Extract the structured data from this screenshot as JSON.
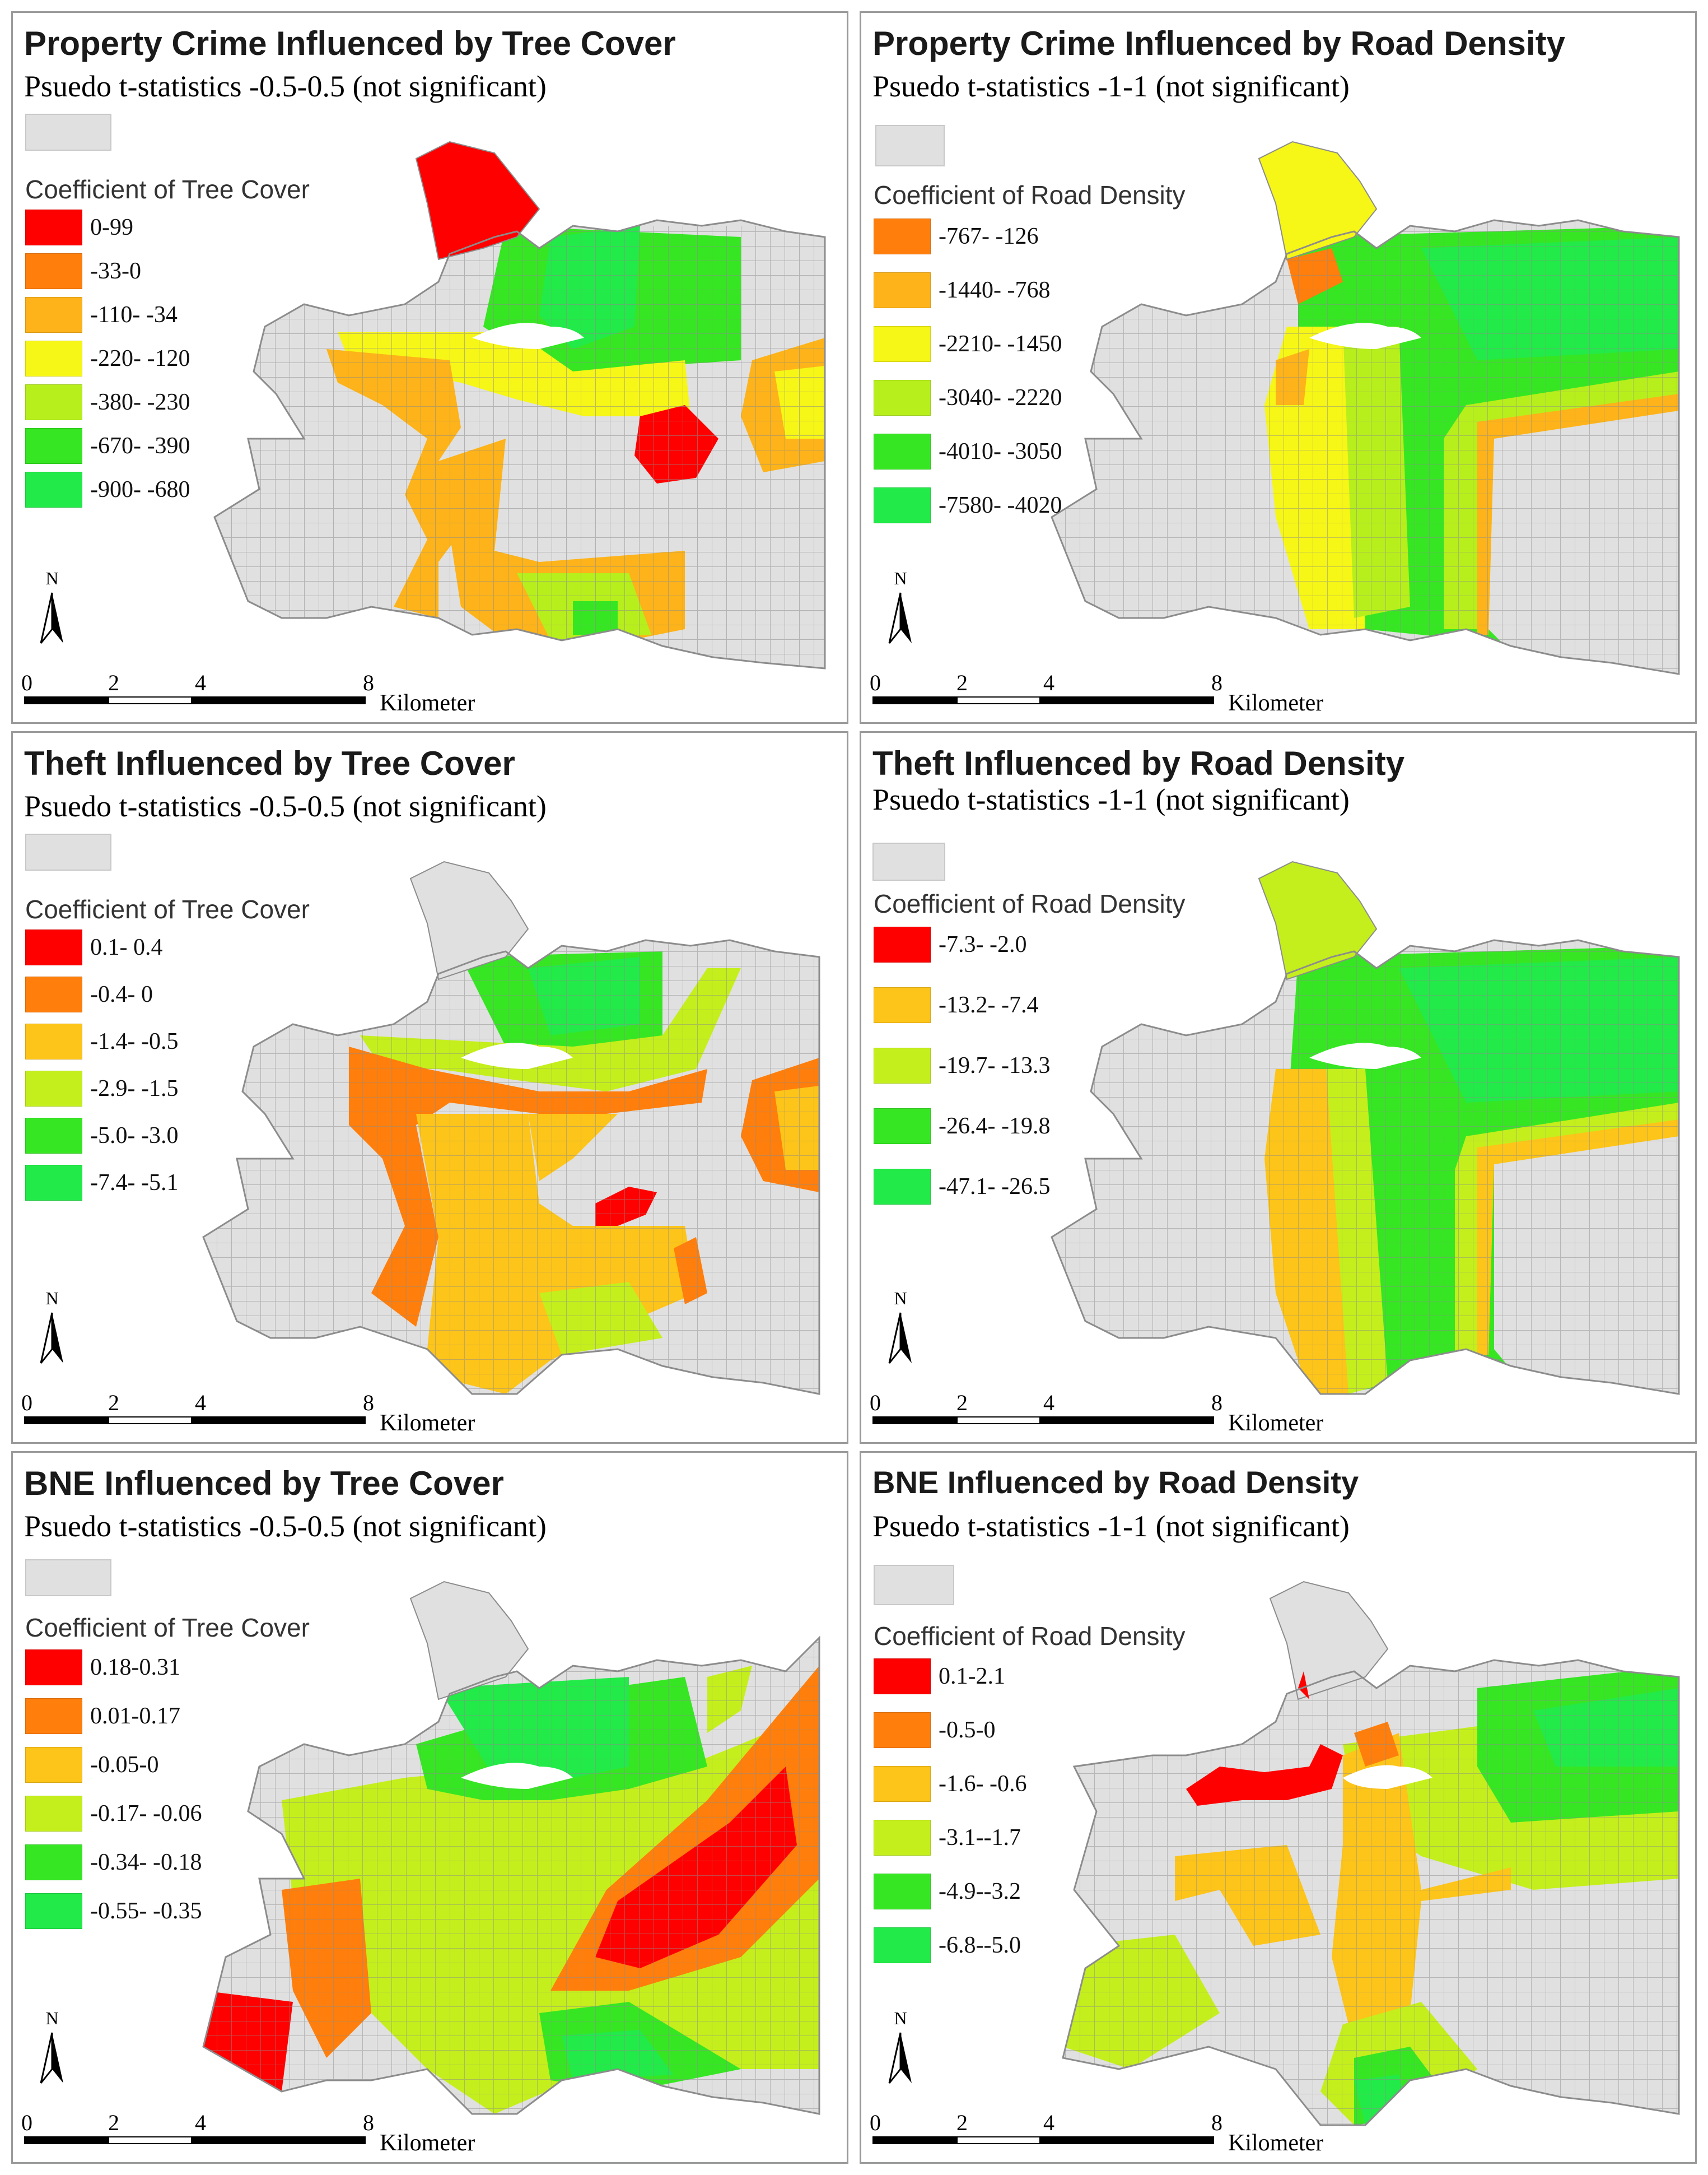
{
  "panels": [
    {
      "title": "Property Crime Influenced by Tree Cover",
      "subtitle": "Psuedo t-statistics -0.5-0.5 (not significant)",
      "legend_title": "Coefficient of Tree Cover",
      "legend": [
        {
          "label": "0-99",
          "color": "#ff0000"
        },
        {
          "label": "-33-0",
          "color": "#ff7e0c"
        },
        {
          "label": "-110- -34",
          "color": "#fdb319"
        },
        {
          "label": "-220- -120",
          "color": "#f6f617"
        },
        {
          "label": "-380- -230",
          "color": "#b7ef1c"
        },
        {
          "label": "-670- -390",
          "color": "#36e623"
        },
        {
          "label": "-900- -680",
          "color": "#22ea48"
        }
      ]
    },
    {
      "title": "Property Crime Influenced by Road Density",
      "subtitle": "Psuedo t-statistics -1-1 (not significant)",
      "legend_title": "Coefficient of Road Density",
      "legend": [
        {
          "label": "-767- -126",
          "color": "#ff7e0c"
        },
        {
          "label": "-1440- -768",
          "color": "#fdb319"
        },
        {
          "label": "-2210- -1450",
          "color": "#f6f617"
        },
        {
          "label": "-3040- -2220",
          "color": "#b7ef1c"
        },
        {
          "label": "-4010- -3050",
          "color": "#36e623"
        },
        {
          "label": "-7580- -4020",
          "color": "#22ea48"
        }
      ]
    },
    {
      "title": "Theft Influenced by Tree Cover",
      "subtitle": "Psuedo t-statistics -0.5-0.5 (not significant)",
      "legend_title": "Coefficient of Tree Cover",
      "legend": [
        {
          "label": "0.1- 0.4",
          "color": "#ff0000"
        },
        {
          "label": "-0.4- 0",
          "color": "#ff7e0c"
        },
        {
          "label": "-1.4- -0.5",
          "color": "#fdc419"
        },
        {
          "label": "-2.9- -1.5",
          "color": "#c4ef1c"
        },
        {
          "label": "-5.0- -3.0",
          "color": "#36e623"
        },
        {
          "label": "-7.4- -5.1",
          "color": "#22ea48"
        }
      ]
    },
    {
      "title": "Theft Influenced by Road Density",
      "subtitle": "Psuedo t-statistics -1-1 (not significant)",
      "legend_title": "Coefficient of Road Density",
      "legend": [
        {
          "label": "-7.3- -2.0",
          "color": "#ff0000"
        },
        {
          "label": "-13.2- -7.4",
          "color": "#fdc419"
        },
        {
          "label": "-19.7- -13.3",
          "color": "#c4ef1c"
        },
        {
          "label": "-26.4- -19.8",
          "color": "#36e623"
        },
        {
          "label": "-47.1- -26.5",
          "color": "#22ea48"
        }
      ]
    },
    {
      "title": "BNE Influenced by Tree Cover",
      "subtitle": "Psuedo t-statistics -0.5-0.5 (not significant)",
      "legend_title": "Coefficient of Tree Cover",
      "legend": [
        {
          "label": "0.18-0.31",
          "color": "#ff0000"
        },
        {
          "label": "0.01-0.17",
          "color": "#ff7e0c"
        },
        {
          "label": "-0.05-0",
          "color": "#fdc419"
        },
        {
          "label": "-0.17- -0.06",
          "color": "#c4ef1c"
        },
        {
          "label": "-0.34- -0.18",
          "color": "#36e623"
        },
        {
          "label": "-0.55- -0.35",
          "color": "#22ea48"
        }
      ]
    },
    {
      "title": "BNE Influenced by Road Density",
      "subtitle": "Psuedo t-statistics -1-1 (not significant)",
      "legend_title": "Coefficient of Road Density",
      "legend": [
        {
          "label": "0.1-2.1",
          "color": "#ff0000"
        },
        {
          "label": "-0.5-0",
          "color": "#ff7e0c"
        },
        {
          "label": "-1.6- -0.6",
          "color": "#fdc419"
        },
        {
          "label": "-3.1--1.7",
          "color": "#c4ef1c"
        },
        {
          "label": "-4.9--3.2",
          "color": "#36e623"
        },
        {
          "label": "-6.8--5.0",
          "color": "#22ea48"
        }
      ]
    }
  ],
  "scale": {
    "ticks": [
      "0",
      "2",
      "4",
      "8"
    ],
    "unit": "Kilometer"
  },
  "north_label": "N",
  "colors": {
    "not_significant": "#e0e0e0",
    "boundary": "#9a9a9a"
  }
}
